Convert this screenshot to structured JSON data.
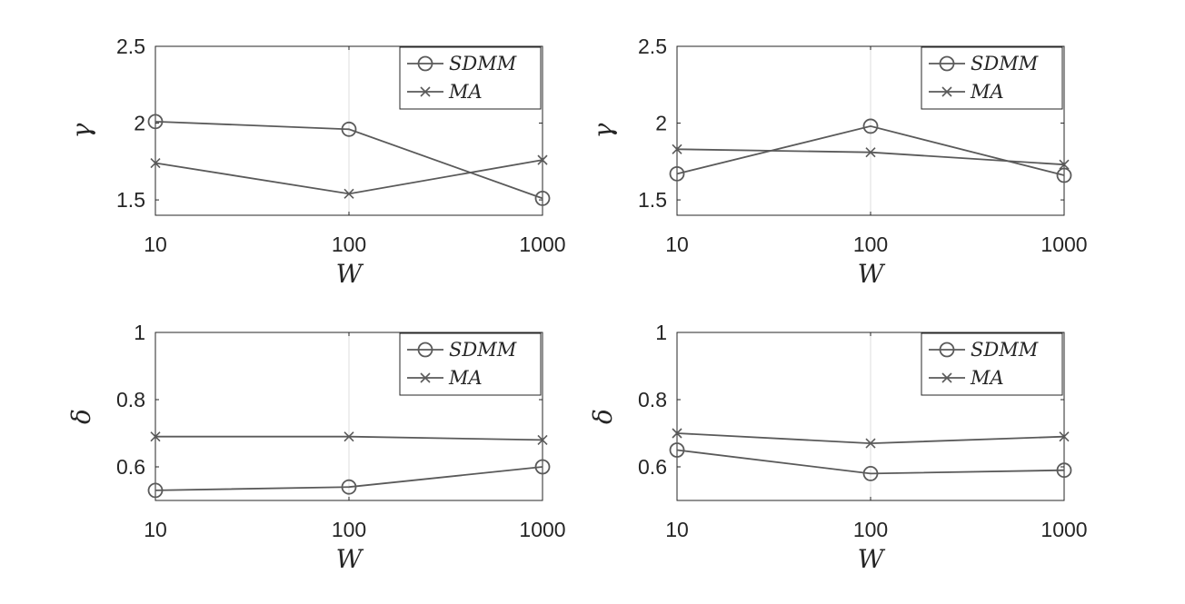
{
  "chart_data": [
    {
      "type": "line",
      "x": [
        10,
        100,
        1000
      ],
      "xscale": "log",
      "xticks": [
        "10",
        "100",
        "1000"
      ],
      "xlabel": "W",
      "ylabel": "γ",
      "ylim": [
        1.4,
        2.5
      ],
      "yticks": [
        "1.5",
        "2",
        "2.5"
      ],
      "series": [
        {
          "name": "SDMM",
          "marker": "o",
          "values": [
            2.01,
            1.96,
            1.51
          ]
        },
        {
          "name": "MA",
          "marker": "x",
          "values": [
            1.74,
            1.54,
            1.76
          ]
        }
      ],
      "legend": "top-right",
      "grid": "x-only",
      "color": "#5a5a5a"
    },
    {
      "type": "line",
      "x": [
        10,
        100,
        1000
      ],
      "xscale": "log",
      "xticks": [
        "10",
        "100",
        "1000"
      ],
      "xlabel": "W",
      "ylabel": "γ",
      "ylim": [
        1.4,
        2.5
      ],
      "yticks": [
        "1.5",
        "2",
        "2.5"
      ],
      "series": [
        {
          "name": "SDMM",
          "marker": "o",
          "values": [
            1.67,
            1.98,
            1.66
          ]
        },
        {
          "name": "MA",
          "marker": "x",
          "values": [
            1.83,
            1.81,
            1.73
          ]
        }
      ],
      "legend": "top-right",
      "grid": "x-only",
      "color": "#5a5a5a"
    },
    {
      "type": "line",
      "x": [
        10,
        100,
        1000
      ],
      "xscale": "log",
      "xticks": [
        "10",
        "100",
        "1000"
      ],
      "xlabel": "W",
      "ylabel": "δ",
      "ylim": [
        0.5,
        1.0
      ],
      "yticks": [
        "0.6",
        "0.8",
        "1"
      ],
      "series": [
        {
          "name": "SDMM",
          "marker": "o",
          "values": [
            0.53,
            0.54,
            0.6
          ]
        },
        {
          "name": "MA",
          "marker": "x",
          "values": [
            0.69,
            0.69,
            0.68
          ]
        }
      ],
      "legend": "top-right",
      "grid": "x-only",
      "color": "#5a5a5a"
    },
    {
      "type": "line",
      "x": [
        10,
        100,
        1000
      ],
      "xscale": "log",
      "xticks": [
        "10",
        "100",
        "1000"
      ],
      "xlabel": "W",
      "ylabel": "δ",
      "ylim": [
        0.5,
        1.0
      ],
      "yticks": [
        "0.6",
        "0.8",
        "1"
      ],
      "series": [
        {
          "name": "SDMM",
          "marker": "o",
          "values": [
            0.65,
            0.58,
            0.59
          ]
        },
        {
          "name": "MA",
          "marker": "x",
          "values": [
            0.7,
            0.67,
            0.69
          ]
        }
      ],
      "legend": "top-right",
      "grid": "x-only",
      "color": "#5a5a5a"
    }
  ]
}
